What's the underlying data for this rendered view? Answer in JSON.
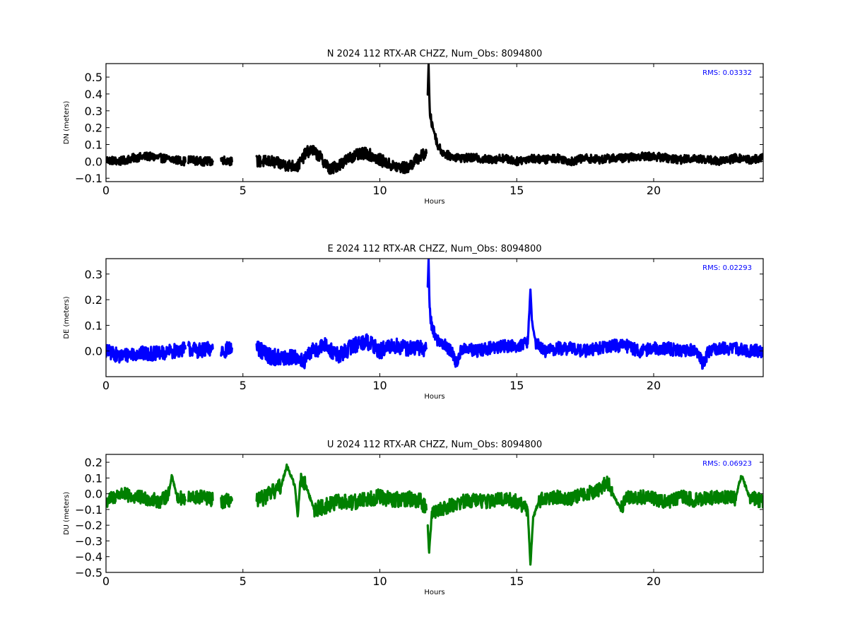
{
  "chart_data": [
    {
      "type": "line",
      "title": "N 2024 112 RTX-AR  CHZZ, Num_Obs: 8094800",
      "xlabel": "Hours",
      "ylabel": "DN (meters)",
      "xlim": [
        0,
        24
      ],
      "ylim": [
        -0.12,
        0.58
      ],
      "xticks": [
        0,
        5,
        10,
        15,
        20
      ],
      "yticks": [
        -0.1,
        0.0,
        0.1,
        0.2,
        0.3,
        0.4,
        0.5
      ],
      "ytick_labels": [
        "−0.1",
        "0.0",
        "0.1",
        "0.2",
        "0.3",
        "0.4",
        "0.5"
      ],
      "color": "#000000",
      "rms_text": "RMS:  0.03332",
      "rms_color": "#0000ff",
      "grid": false,
      "series": [
        {
          "segments": [
            {
              "x": [
                0.0,
                0.5,
                1.0,
                1.5,
                2.0,
                2.5,
                2.9
              ],
              "y": [
                0.01,
                0.0,
                0.02,
                0.03,
                0.02,
                0.01,
                0.0
              ],
              "amp": 0.025
            },
            {
              "x": [
                3.0,
                3.5,
                3.9
              ],
              "y": [
                0.01,
                0.0,
                0.0
              ],
              "amp": 0.025
            },
            {
              "x": [
                4.2,
                4.6
              ],
              "y": [
                0.01,
                0.0
              ],
              "amp": 0.025
            },
            {
              "x": [
                5.5,
                6.0,
                6.5,
                7.0,
                7.3,
                7.5,
                7.8,
                8.2,
                8.5,
                9.0,
                9.5,
                10.0,
                10.5,
                11.0,
                11.4,
                11.7
              ],
              "y": [
                0.0,
                0.0,
                -0.02,
                -0.03,
                0.05,
                0.07,
                0.03,
                -0.05,
                -0.02,
                0.03,
                0.05,
                0.01,
                -0.03,
                -0.04,
                0.02,
                0.05
              ],
              "amp": 0.035
            },
            {
              "x": [
                11.75,
                11.78,
                11.82,
                11.9,
                12.0,
                12.1,
                12.3,
                12.6,
                13.0,
                13.5,
                14.0,
                14.5,
                15.0,
                15.5,
                16.0,
                16.5,
                17.0,
                17.5,
                18.0,
                18.5,
                19.0,
                19.5,
                20.0,
                20.5,
                21.0,
                21.5,
                22.0,
                22.5,
                23.0,
                23.5,
                24.0
              ],
              "y": [
                0.4,
                0.57,
                0.3,
                0.22,
                0.17,
                0.1,
                0.05,
                0.03,
                0.02,
                0.02,
                0.01,
                0.02,
                0.0,
                0.02,
                0.01,
                0.02,
                0.0,
                0.02,
                0.01,
                0.02,
                0.02,
                0.03,
                0.03,
                0.02,
                0.01,
                0.02,
                0.01,
                0.0,
                0.02,
                0.01,
                0.02
              ],
              "amp": 0.025
            }
          ]
        }
      ]
    },
    {
      "type": "line",
      "title": "E 2024 112 RTX-AR  CHZZ, Num_Obs: 8094800",
      "xlabel": "Hours",
      "ylabel": "DE (meters)",
      "xlim": [
        0,
        24
      ],
      "ylim": [
        -0.1,
        0.36
      ],
      "xticks": [
        0,
        5,
        10,
        15,
        20
      ],
      "yticks": [
        0.0,
        0.1,
        0.2,
        0.3
      ],
      "ytick_labels": [
        "0.0",
        "0.1",
        "0.2",
        "0.3"
      ],
      "color": "#0000ff",
      "rms_text": "RMS:  0.02293",
      "rms_color": "#0000ff",
      "grid": false,
      "series": [
        {
          "segments": [
            {
              "x": [
                0.0,
                0.5,
                1.0,
                1.5,
                2.0,
                2.5,
                2.9
              ],
              "y": [
                0.0,
                -0.02,
                -0.01,
                -0.01,
                -0.01,
                0.0,
                0.01
              ],
              "amp": 0.028
            },
            {
              "x": [
                3.0,
                3.5,
                3.9
              ],
              "y": [
                0.01,
                0.0,
                0.01
              ],
              "amp": 0.03
            },
            {
              "x": [
                4.2,
                4.6
              ],
              "y": [
                0.0,
                0.01
              ],
              "amp": 0.03
            },
            {
              "x": [
                5.5,
                6.0,
                6.5,
                7.0,
                7.2,
                7.5,
                8.0,
                8.5,
                9.0,
                9.5,
                10.0,
                10.5,
                11.0,
                11.5,
                11.7
              ],
              "y": [
                0.01,
                -0.02,
                -0.03,
                -0.02,
                -0.05,
                0.0,
                0.02,
                -0.02,
                0.02,
                0.04,
                0.0,
                0.02,
                0.01,
                0.01,
                0.01
              ],
              "amp": 0.032
            },
            {
              "x": [
                11.75,
                11.78,
                11.82,
                11.9,
                12.1,
                12.3,
                12.6,
                12.8,
                13.0,
                13.5,
                14.0,
                14.5,
                15.0,
                15.4,
                15.5,
                15.55,
                15.7,
                16.0,
                16.5,
                17.0,
                17.5,
                18.0,
                18.5,
                19.0,
                19.5,
                20.0,
                20.5,
                21.0,
                21.5,
                21.8,
                22.0,
                22.5,
                23.0,
                23.5,
                24.0
              ],
              "y": [
                0.25,
                0.36,
                0.15,
                0.1,
                0.04,
                0.03,
                0.0,
                -0.05,
                0.01,
                0.0,
                0.01,
                0.02,
                0.02,
                0.03,
                0.24,
                0.12,
                0.03,
                0.0,
                0.01,
                0.01,
                0.0,
                0.01,
                0.02,
                0.02,
                0.0,
                0.01,
                0.01,
                0.0,
                0.01,
                -0.05,
                0.0,
                0.01,
                0.01,
                0.0,
                0.0
              ],
              "amp": 0.025
            }
          ]
        }
      ]
    },
    {
      "type": "line",
      "title": "U 2024 112 RTX-AR  CHZZ, Num_Obs: 8094800",
      "xlabel": "Hours",
      "ylabel": "DU (meters)",
      "xlim": [
        0,
        24
      ],
      "ylim": [
        -0.5,
        0.25
      ],
      "xticks": [
        0,
        5,
        10,
        15,
        20
      ],
      "yticks": [
        -0.5,
        -0.4,
        -0.3,
        -0.2,
        -0.1,
        0.0,
        0.1,
        0.2
      ],
      "ytick_labels": [
        "−0.5",
        "−0.4",
        "−0.3",
        "−0.2",
        "−0.1",
        "0.0",
        "0.1",
        "0.2"
      ],
      "color": "#008000",
      "rms_text": "RMS:  0.06923",
      "rms_color": "#0000ff",
      "grid": false,
      "series": [
        {
          "segments": [
            {
              "x": [
                0.0,
                0.5,
                1.0,
                1.5,
                2.0,
                2.3,
                2.4,
                2.6,
                2.9
              ],
              "y": [
                -0.05,
                0.0,
                -0.02,
                -0.03,
                -0.05,
                0.0,
                0.12,
                -0.02,
                -0.04
              ],
              "amp": 0.045
            },
            {
              "x": [
                3.0,
                3.5,
                3.9
              ],
              "y": [
                -0.03,
                -0.02,
                -0.04
              ],
              "amp": 0.045
            },
            {
              "x": [
                4.2,
                4.6
              ],
              "y": [
                -0.05,
                -0.04
              ],
              "amp": 0.045
            },
            {
              "x": [
                5.5,
                6.0,
                6.4,
                6.6,
                6.9,
                7.0,
                7.1,
                7.3,
                7.6,
                8.0,
                8.5,
                9.0,
                9.5,
                10.0,
                10.5,
                11.0,
                11.5,
                11.7
              ],
              "y": [
                -0.05,
                0.0,
                0.05,
                0.18,
                0.05,
                -0.15,
                0.1,
                0.05,
                -0.1,
                -0.08,
                -0.05,
                -0.06,
                -0.03,
                -0.02,
                -0.04,
                -0.03,
                -0.05,
                -0.1
              ],
              "amp": 0.05
            },
            {
              "x": [
                11.75,
                11.8,
                11.9,
                12.2,
                12.5,
                13.0,
                13.5,
                14.0,
                14.5,
                15.0,
                15.4,
                15.5,
                15.6,
                15.8,
                16.0,
                16.5,
                17.0,
                17.5,
                18.0,
                18.3,
                18.5,
                18.8,
                19.0,
                19.5,
                20.0,
                20.5,
                21.0,
                21.5,
                22.0,
                22.5,
                23.0,
                23.2,
                23.5,
                24.0
              ],
              "y": [
                -0.2,
                -0.38,
                -0.12,
                -0.1,
                -0.08,
                -0.05,
                -0.04,
                -0.05,
                -0.03,
                -0.05,
                -0.1,
                -0.45,
                -0.15,
                -0.05,
                -0.03,
                -0.02,
                -0.03,
                0.0,
                0.02,
                0.08,
                0.0,
                -0.1,
                -0.02,
                -0.02,
                -0.03,
                -0.05,
                -0.02,
                -0.04,
                -0.03,
                -0.02,
                -0.03,
                0.12,
                -0.02,
                -0.05
              ],
              "amp": 0.045
            }
          ]
        }
      ]
    }
  ]
}
